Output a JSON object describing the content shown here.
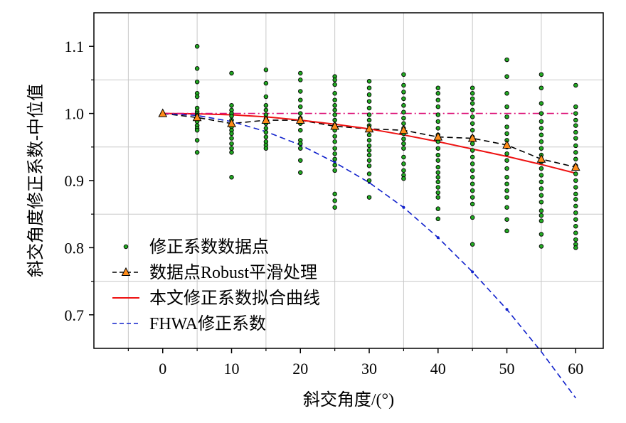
{
  "chart_data": {
    "type": "scatter",
    "title": "",
    "xlabel": "斜交角度/(°)",
    "ylabel": "斜交角度修正系数-中位值",
    "xlim": [
      -10,
      64
    ],
    "ylim": [
      0.65,
      1.15
    ],
    "x_ticks": [
      0,
      10,
      20,
      30,
      40,
      50,
      60
    ],
    "y_ticks": [
      0.7,
      0.8,
      0.9,
      1.0,
      1.1
    ],
    "x_tick_labels": [
      "0",
      "10",
      "20",
      "30",
      "40",
      "50",
      "60"
    ],
    "y_tick_labels": [
      "0.7",
      "0.8",
      "0.9",
      "1.0",
      "1.1"
    ],
    "grid": true,
    "legend_position": "bottom-left",
    "series": [
      {
        "name": "修正系数数据点",
        "kind": "scatter",
        "color": "#22aa22",
        "points": [
          [
            0,
            1.0
          ],
          [
            5,
            1.1
          ],
          [
            5,
            1.067
          ],
          [
            5,
            1.047
          ],
          [
            5,
            1.03
          ],
          [
            5,
            1.025
          ],
          [
            5,
            1.008
          ],
          [
            5,
            1.003
          ],
          [
            5,
            1.0
          ],
          [
            5,
            0.997
          ],
          [
            5,
            0.993
          ],
          [
            5,
            0.988
          ],
          [
            5,
            0.982
          ],
          [
            5,
            0.978
          ],
          [
            5,
            0.975
          ],
          [
            5,
            0.96
          ],
          [
            5,
            0.942
          ],
          [
            10,
            1.06
          ],
          [
            10,
            1.012
          ],
          [
            10,
            1.005
          ],
          [
            10,
            1.0
          ],
          [
            10,
            0.996
          ],
          [
            10,
            0.99
          ],
          [
            10,
            0.985
          ],
          [
            10,
            0.98
          ],
          [
            10,
            0.975
          ],
          [
            10,
            0.97
          ],
          [
            10,
            0.963
          ],
          [
            10,
            0.955
          ],
          [
            10,
            0.948
          ],
          [
            10,
            0.942
          ],
          [
            10,
            0.905
          ],
          [
            15,
            1.065
          ],
          [
            15,
            1.045
          ],
          [
            15,
            1.025
          ],
          [
            15,
            1.012
          ],
          [
            15,
            1.005
          ],
          [
            15,
            0.998
          ],
          [
            15,
            0.992
          ],
          [
            15,
            0.985
          ],
          [
            15,
            0.978
          ],
          [
            15,
            0.972
          ],
          [
            15,
            0.965
          ],
          [
            15,
            0.958
          ],
          [
            15,
            0.953
          ],
          [
            15,
            0.948
          ],
          [
            20,
            1.06
          ],
          [
            20,
            1.05
          ],
          [
            20,
            1.033
          ],
          [
            20,
            1.02
          ],
          [
            20,
            1.01
          ],
          [
            20,
            1.0
          ],
          [
            20,
            0.993
          ],
          [
            20,
            0.985
          ],
          [
            20,
            0.975
          ],
          [
            20,
            0.96
          ],
          [
            20,
            0.955
          ],
          [
            20,
            0.948
          ],
          [
            20,
            0.93
          ],
          [
            20,
            0.912
          ],
          [
            25,
            1.055
          ],
          [
            25,
            1.05
          ],
          [
            25,
            1.043
          ],
          [
            25,
            1.03
          ],
          [
            25,
            1.02
          ],
          [
            25,
            1.012
          ],
          [
            25,
            1.005
          ],
          [
            25,
            0.998
          ],
          [
            25,
            0.99
          ],
          [
            25,
            0.983
          ],
          [
            25,
            0.975
          ],
          [
            25,
            0.966
          ],
          [
            25,
            0.958
          ],
          [
            25,
            0.948
          ],
          [
            25,
            0.94
          ],
          [
            25,
            0.932
          ],
          [
            25,
            0.923
          ],
          [
            25,
            0.915
          ],
          [
            25,
            0.88
          ],
          [
            25,
            0.87
          ],
          [
            25,
            0.86
          ],
          [
            30,
            1.048
          ],
          [
            30,
            1.038
          ],
          [
            30,
            1.028
          ],
          [
            30,
            1.018
          ],
          [
            30,
            1.008
          ],
          [
            30,
            0.998
          ],
          [
            30,
            0.99
          ],
          [
            30,
            0.982
          ],
          [
            30,
            0.975
          ],
          [
            30,
            0.968
          ],
          [
            30,
            0.96
          ],
          [
            30,
            0.952
          ],
          [
            30,
            0.945
          ],
          [
            30,
            0.938
          ],
          [
            30,
            0.93
          ],
          [
            30,
            0.922
          ],
          [
            30,
            0.91
          ],
          [
            30,
            0.9
          ],
          [
            30,
            0.875
          ],
          [
            35,
            1.058
          ],
          [
            35,
            1.042
          ],
          [
            35,
            1.032
          ],
          [
            35,
            1.022
          ],
          [
            35,
            1.012
          ],
          [
            35,
            1.002
          ],
          [
            35,
            0.993
          ],
          [
            35,
            0.985
          ],
          [
            35,
            0.978
          ],
          [
            35,
            0.97
          ],
          [
            35,
            0.962
          ],
          [
            35,
            0.955
          ],
          [
            35,
            0.948
          ],
          [
            35,
            0.935
          ],
          [
            35,
            0.925
          ],
          [
            35,
            0.915
          ],
          [
            35,
            0.908
          ],
          [
            35,
            0.903
          ],
          [
            40,
            1.038
          ],
          [
            40,
            1.03
          ],
          [
            40,
            1.02
          ],
          [
            40,
            1.01
          ],
          [
            40,
            0.998
          ],
          [
            40,
            0.988
          ],
          [
            40,
            0.978
          ],
          [
            40,
            0.968
          ],
          [
            40,
            0.958
          ],
          [
            40,
            0.948
          ],
          [
            40,
            0.938
          ],
          [
            40,
            0.93
          ],
          [
            40,
            0.92
          ],
          [
            40,
            0.912
          ],
          [
            40,
            0.905
          ],
          [
            40,
            0.898
          ],
          [
            40,
            0.89
          ],
          [
            40,
            0.882
          ],
          [
            40,
            0.875
          ],
          [
            40,
            0.858
          ],
          [
            40,
            0.843
          ],
          [
            45,
            1.038
          ],
          [
            45,
            1.03
          ],
          [
            45,
            1.022
          ],
          [
            45,
            1.015
          ],
          [
            45,
            1.005
          ],
          [
            45,
            0.995
          ],
          [
            45,
            0.985
          ],
          [
            45,
            0.975
          ],
          [
            45,
            0.965
          ],
          [
            45,
            0.955
          ],
          [
            45,
            0.945
          ],
          [
            45,
            0.935
          ],
          [
            45,
            0.925
          ],
          [
            45,
            0.915
          ],
          [
            45,
            0.905
          ],
          [
            45,
            0.895
          ],
          [
            45,
            0.885
          ],
          [
            45,
            0.875
          ],
          [
            45,
            0.865
          ],
          [
            45,
            0.845
          ],
          [
            45,
            0.805
          ],
          [
            50,
            1.08
          ],
          [
            50,
            1.055
          ],
          [
            50,
            1.03
          ],
          [
            50,
            1.01
          ],
          [
            50,
            0.995
          ],
          [
            50,
            0.98
          ],
          [
            50,
            0.97
          ],
          [
            50,
            0.96
          ],
          [
            50,
            0.95
          ],
          [
            50,
            0.94
          ],
          [
            50,
            0.93
          ],
          [
            50,
            0.918
          ],
          [
            50,
            0.905
          ],
          [
            50,
            0.895
          ],
          [
            50,
            0.885
          ],
          [
            50,
            0.875
          ],
          [
            50,
            0.86
          ],
          [
            50,
            0.842
          ],
          [
            50,
            0.825
          ],
          [
            55,
            1.058
          ],
          [
            55,
            1.038
          ],
          [
            55,
            1.015
          ],
          [
            55,
            1.0
          ],
          [
            55,
            0.988
          ],
          [
            55,
            0.978
          ],
          [
            55,
            0.968
          ],
          [
            55,
            0.958
          ],
          [
            55,
            0.948
          ],
          [
            55,
            0.938
          ],
          [
            55,
            0.928
          ],
          [
            55,
            0.918
          ],
          [
            55,
            0.908
          ],
          [
            55,
            0.898
          ],
          [
            55,
            0.888
          ],
          [
            55,
            0.878
          ],
          [
            55,
            0.868
          ],
          [
            55,
            0.855
          ],
          [
            55,
            0.848
          ],
          [
            55,
            0.84
          ],
          [
            55,
            0.82
          ],
          [
            55,
            0.802
          ],
          [
            60,
            1.042
          ],
          [
            60,
            1.01
          ],
          [
            60,
            1.0
          ],
          [
            60,
            0.99
          ],
          [
            60,
            0.982
          ],
          [
            60,
            0.972
          ],
          [
            60,
            0.963
          ],
          [
            60,
            0.952
          ],
          [
            60,
            0.942
          ],
          [
            60,
            0.932
          ],
          [
            60,
            0.922
          ],
          [
            60,
            0.91
          ],
          [
            60,
            0.9
          ],
          [
            60,
            0.89
          ],
          [
            60,
            0.88
          ],
          [
            60,
            0.872
          ],
          [
            60,
            0.862
          ],
          [
            60,
            0.852
          ],
          [
            60,
            0.842
          ],
          [
            60,
            0.832
          ],
          [
            60,
            0.822
          ],
          [
            60,
            0.812
          ],
          [
            60,
            0.805
          ],
          [
            60,
            0.8
          ]
        ]
      },
      {
        "name": "数据点Robust平滑处理",
        "kind": "line-marker",
        "color": "#000000",
        "marker_fill": "#ff8c1a",
        "x": [
          0,
          5,
          10,
          15,
          20,
          25,
          30,
          35,
          40,
          45,
          50,
          55,
          60
        ],
        "y": [
          1.0,
          0.994,
          0.985,
          0.99,
          0.99,
          0.981,
          0.977,
          0.975,
          0.965,
          0.963,
          0.953,
          0.932,
          0.92
        ]
      },
      {
        "name": "本文修正系数拟合曲线",
        "kind": "line",
        "color": "#ee1111",
        "x": [
          0,
          5,
          10,
          15,
          20,
          25,
          30,
          35,
          40,
          45,
          50,
          55,
          60
        ],
        "y": [
          1.0,
          0.9995,
          0.998,
          0.995,
          0.99,
          0.984,
          0.977,
          0.968,
          0.958,
          0.947,
          0.936,
          0.924,
          0.911
        ]
      },
      {
        "name": "FHWA修正系数",
        "kind": "dashed-line",
        "color": "#1122cc",
        "x": [
          0,
          5,
          10,
          15,
          20,
          25,
          30,
          35,
          40,
          45,
          50,
          55,
          60
        ],
        "y": [
          1.0,
          0.997,
          0.988,
          0.973,
          0.953,
          0.927,
          0.897,
          0.86,
          0.815,
          0.764,
          0.708,
          0.645,
          0.576
        ]
      },
      {
        "kind": "dash-dot-line",
        "color": "#dd1177",
        "x": [
          0,
          60
        ],
        "y": [
          1.0,
          1.0
        ]
      }
    ]
  }
}
